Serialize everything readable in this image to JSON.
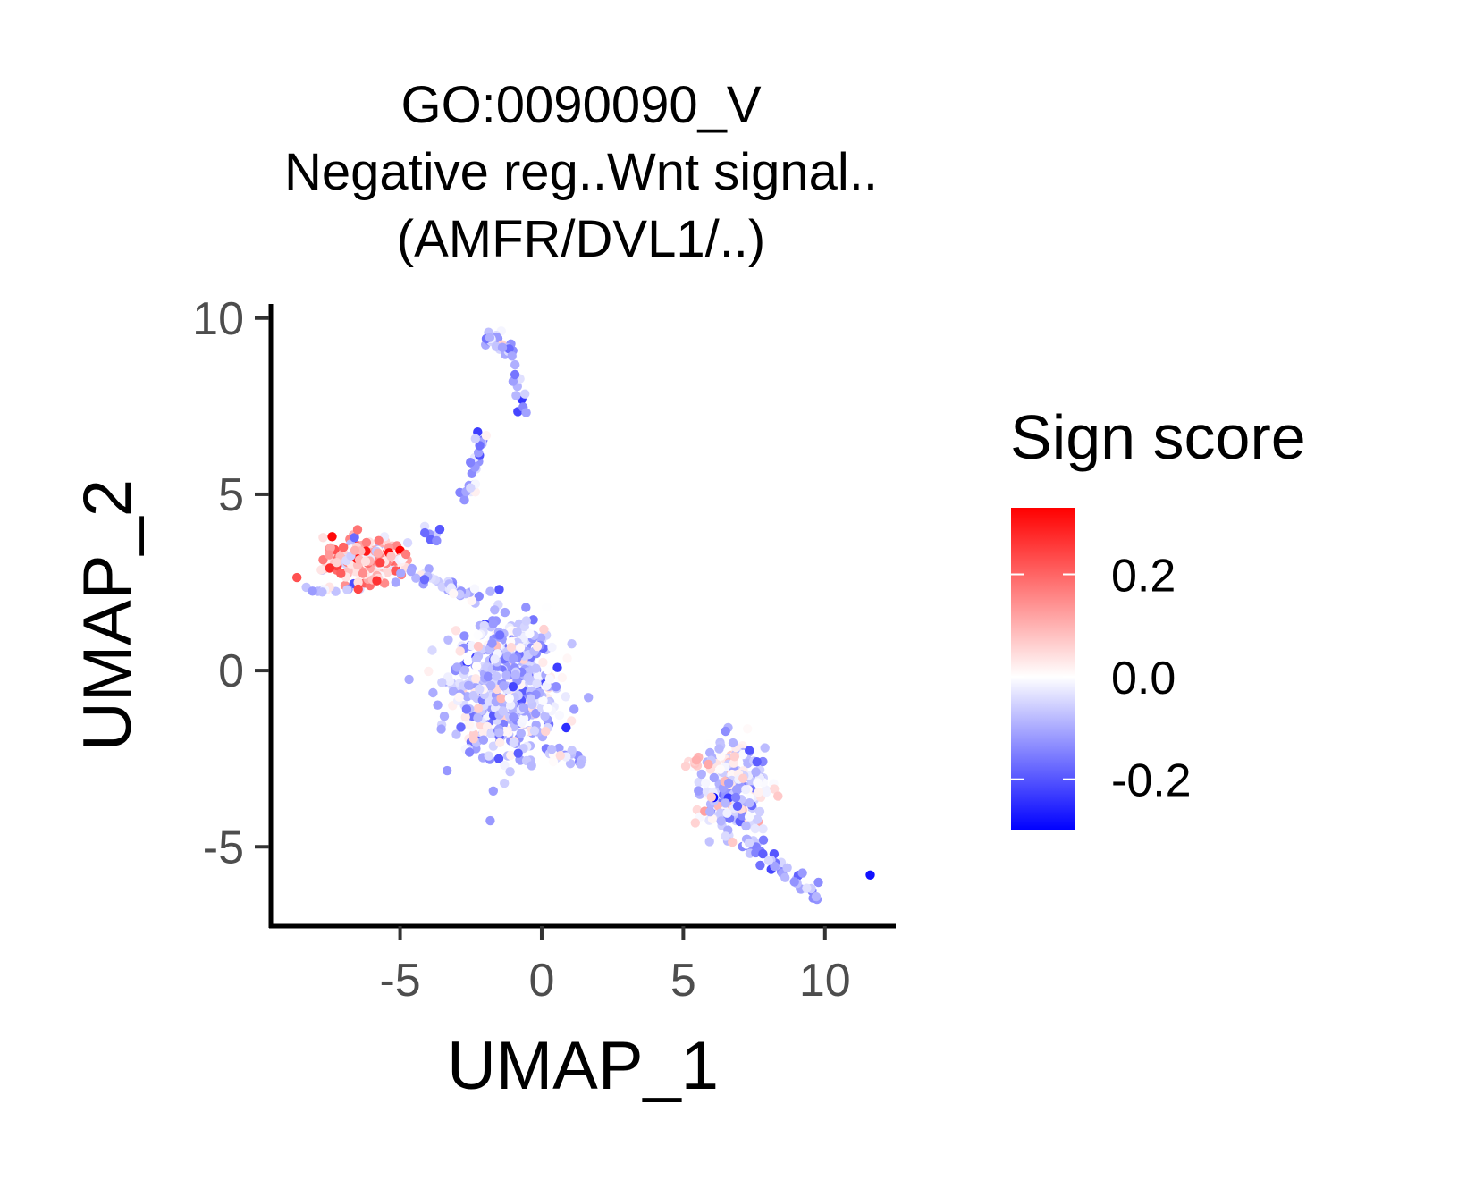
{
  "chart_data": {
    "type": "scatter",
    "title_lines": [
      "GO:0090090_V",
      "Negative reg..Wnt signal..",
      "(AMFR/DVL1/..)"
    ],
    "xlabel": "UMAP_1",
    "ylabel": "UMAP_2",
    "xlim": [
      -9.5,
      12.5
    ],
    "ylim": [
      -7.2,
      10.4
    ],
    "x_ticks": [
      -5,
      0,
      5,
      10
    ],
    "x_tick_labels": [
      "-5",
      "0",
      "5",
      "10"
    ],
    "y_ticks": [
      -5,
      0,
      5,
      10
    ],
    "y_tick_labels": [
      "-5",
      "0",
      "5",
      "10"
    ],
    "grid": false,
    "legend": {
      "title": "Sign score",
      "position": "right",
      "ticks": [
        0.2,
        0.0,
        -0.2
      ],
      "tick_labels": [
        "0.2",
        "0.0",
        "-0.2"
      ],
      "range": [
        -0.3,
        0.33
      ],
      "colors": {
        "low": "#0000ff",
        "mid": "#ffffff",
        "high": "#ff0000"
      }
    },
    "clusters": [
      {
        "name": "upper-left",
        "center": [
          -6.2,
          3.1
        ],
        "spread": [
          1.2,
          0.5
        ],
        "n": 220,
        "score_mean": 0.08,
        "score_sd": 0.1
      },
      {
        "name": "center",
        "center": [
          -1.3,
          -0.4
        ],
        "spread": [
          1.5,
          1.6
        ],
        "n": 640,
        "score_mean": -0.07,
        "score_sd": 0.06
      },
      {
        "name": "lower-right",
        "center": [
          6.8,
          -3.4
        ],
        "spread": [
          0.9,
          1.0
        ],
        "n": 260,
        "score_mean": -0.06,
        "score_sd": 0.07
      }
    ],
    "paths": [
      {
        "from": [
          -2.0,
          9.6
        ],
        "to": [
          -1.0,
          9.0
        ],
        "n": 30,
        "score_mean": -0.08
      },
      {
        "from": [
          -1.0,
          9.0
        ],
        "to": [
          -0.7,
          7.4
        ],
        "n": 12,
        "score_mean": -0.12
      },
      {
        "from": [
          -2.1,
          6.8
        ],
        "to": [
          -2.6,
          4.8
        ],
        "n": 26,
        "score_mean": -0.1
      },
      {
        "from": [
          -4.2,
          3.9
        ],
        "to": [
          -3.5,
          3.9
        ],
        "n": 8,
        "score_mean": -0.14
      },
      {
        "from": [
          -5.0,
          2.9
        ],
        "to": [
          -2.2,
          2.0
        ],
        "n": 40,
        "score_mean": -0.06
      },
      {
        "from": [
          -8.4,
          2.2
        ],
        "to": [
          -7.0,
          2.4
        ],
        "n": 12,
        "score_mean": -0.04
      },
      {
        "from": [
          0.0,
          -2.3
        ],
        "to": [
          1.3,
          -2.5
        ],
        "n": 22,
        "score_mean": -0.06
      },
      {
        "from": [
          7.2,
          -4.8
        ],
        "to": [
          9.7,
          -6.4
        ],
        "n": 40,
        "score_mean": -0.1
      },
      {
        "from": [
          5.0,
          -2.5
        ],
        "to": [
          6.0,
          -2.8
        ],
        "n": 12,
        "score_mean": 0.06
      }
    ],
    "highlight_points": [
      {
        "x": 11.6,
        "y": -5.8,
        "score": -0.28
      },
      {
        "x": -7.4,
        "y": 3.8,
        "score": 0.32
      },
      {
        "x": -7.0,
        "y": 3.5,
        "score": 0.2
      },
      {
        "x": -6.5,
        "y": 4.0,
        "score": 0.18
      },
      {
        "x": -1.5,
        "y": 2.3,
        "score": -0.2
      }
    ]
  }
}
